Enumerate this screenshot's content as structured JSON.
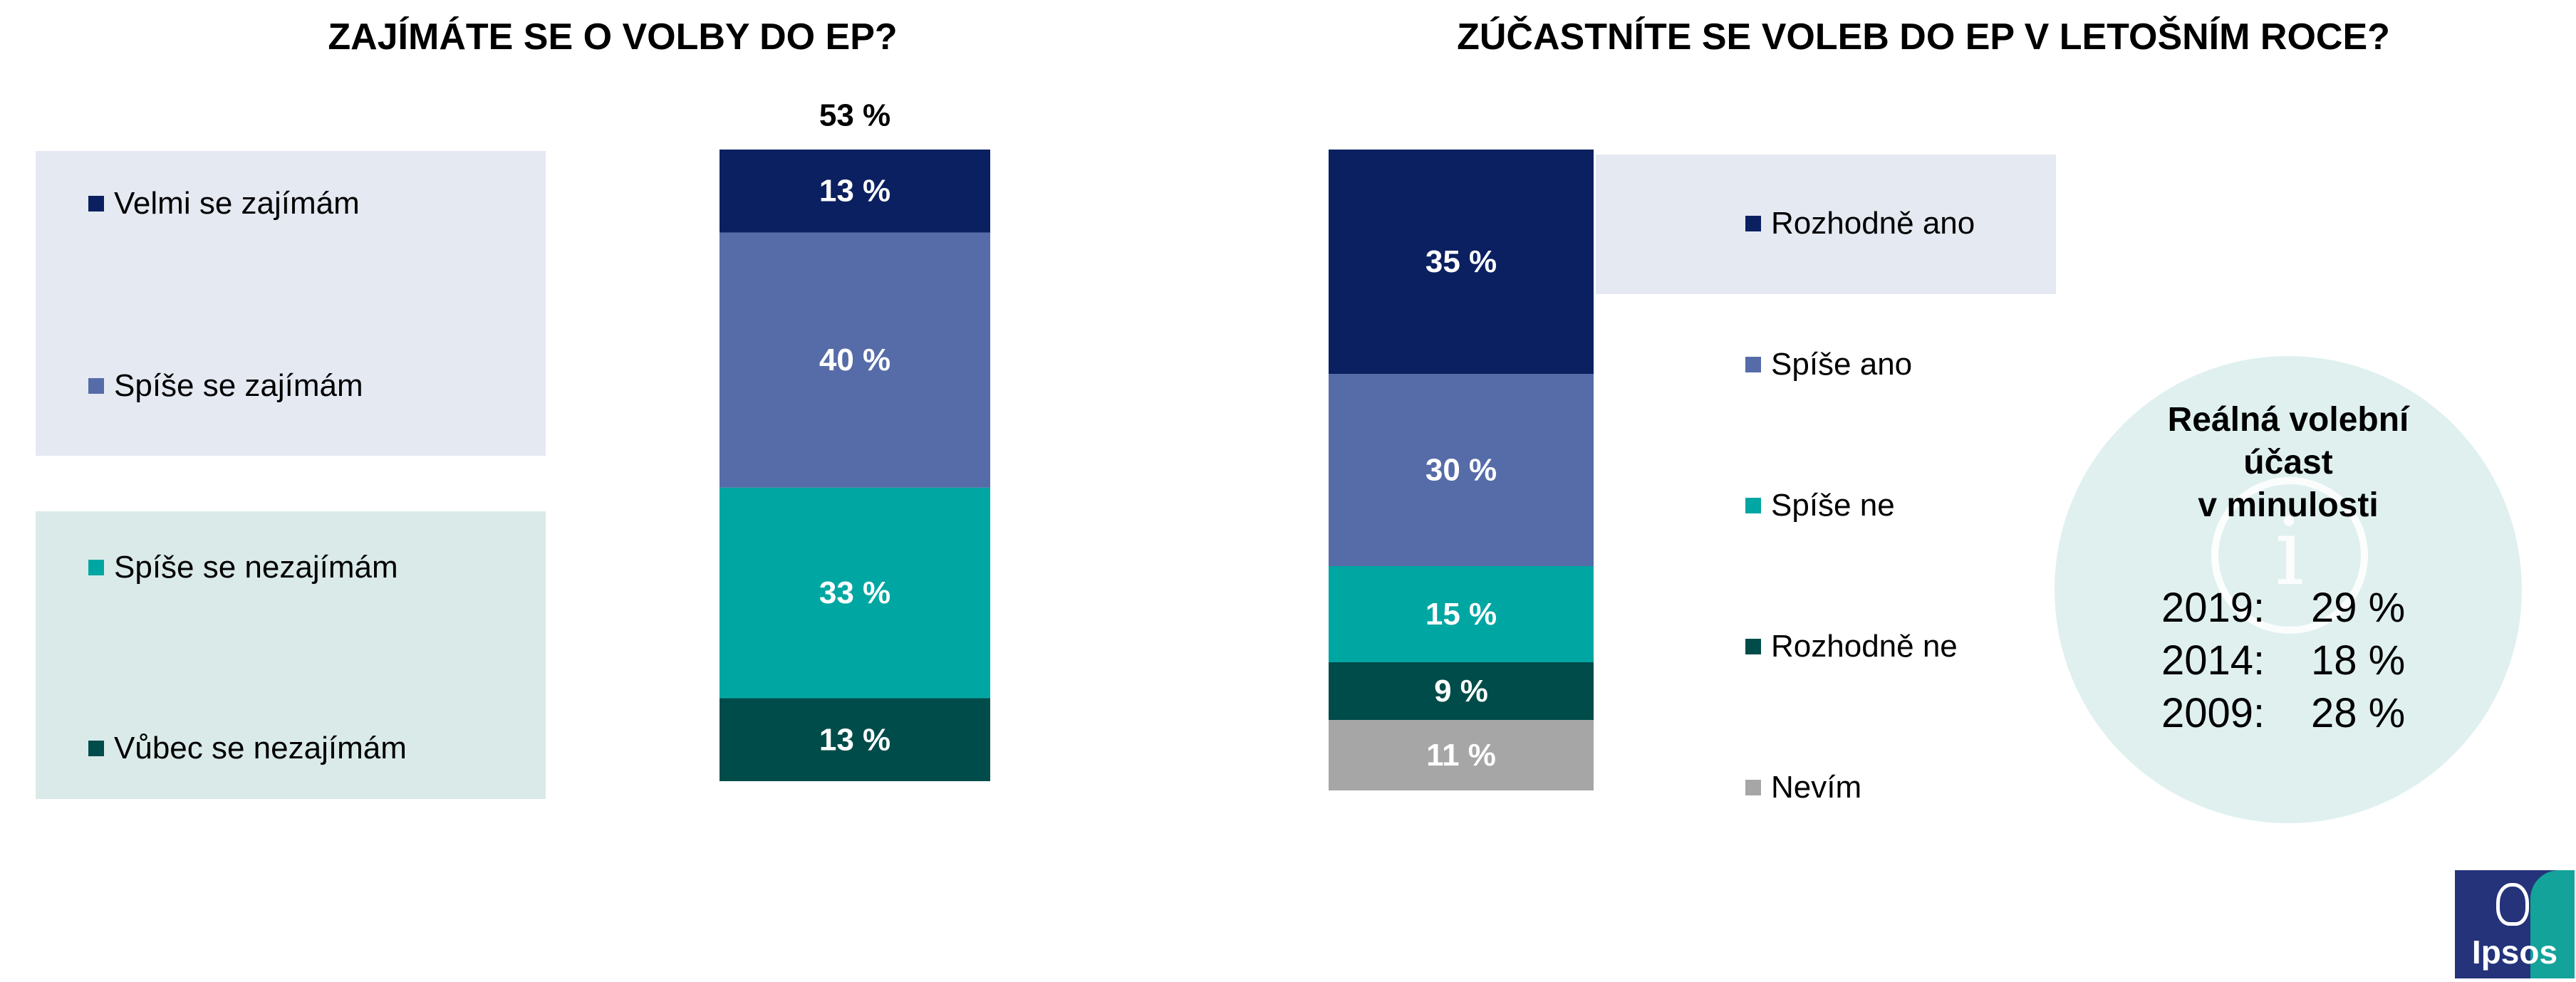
{
  "colors": {
    "navy": "#0a2060",
    "slate": "#566ca8",
    "teal": "#00a6a2",
    "dark_teal": "#004c4a",
    "gray": "#a6a6a6"
  },
  "chart_data": [
    {
      "type": "bar",
      "stacked": true,
      "title": "ZAJÍMÁTE SE O VOLBY DO EP?",
      "categories": [
        ""
      ],
      "series": [
        {
          "name": "Velmi se zajímám",
          "values": [
            13
          ],
          "label": "13 %",
          "color": "#0a2060"
        },
        {
          "name": "Spíše se zajímám",
          "values": [
            40
          ],
          "label": "40 %",
          "color": "#566ca8"
        },
        {
          "name": "Spíše se nezajímám",
          "values": [
            33
          ],
          "label": "33 %",
          "color": "#00a6a2"
        },
        {
          "name": "Vůbec se nezajímám",
          "values": [
            13
          ],
          "label": "13 %",
          "color": "#004c4a"
        }
      ],
      "total_label": "53 %",
      "legend": "left"
    },
    {
      "type": "bar",
      "stacked": true,
      "title": "ZÚČASTNÍTE SE VOLEB DO EP V LETOŠNÍM ROCE?",
      "categories": [
        ""
      ],
      "series": [
        {
          "name": "Rozhodně ano",
          "values": [
            35
          ],
          "label": "35 %",
          "color": "#0a2060"
        },
        {
          "name": "Spíše ano",
          "values": [
            30
          ],
          "label": "30 %",
          "color": "#566ca8"
        },
        {
          "name": "Spíše ne",
          "values": [
            15
          ],
          "label": "15 %",
          "color": "#00a6a2"
        },
        {
          "name": "Rozhodně ne",
          "values": [
            9
          ],
          "label": "9 %",
          "color": "#004c4a"
        },
        {
          "name": "Nevím",
          "values": [
            11
          ],
          "label": "11 %",
          "color": "#a6a6a6"
        }
      ],
      "legend": "right"
    }
  ],
  "turnout_box": {
    "heading_line1": "Reálná volební",
    "heading_line2": "účast",
    "heading_line3": "v minulosti",
    "rows": [
      {
        "year": "2019:",
        "value": "29 %"
      },
      {
        "year": "2014:",
        "value": "18 %"
      },
      {
        "year": "2009:",
        "value": "28 %"
      }
    ]
  },
  "logo": {
    "text": "Ipsos"
  }
}
